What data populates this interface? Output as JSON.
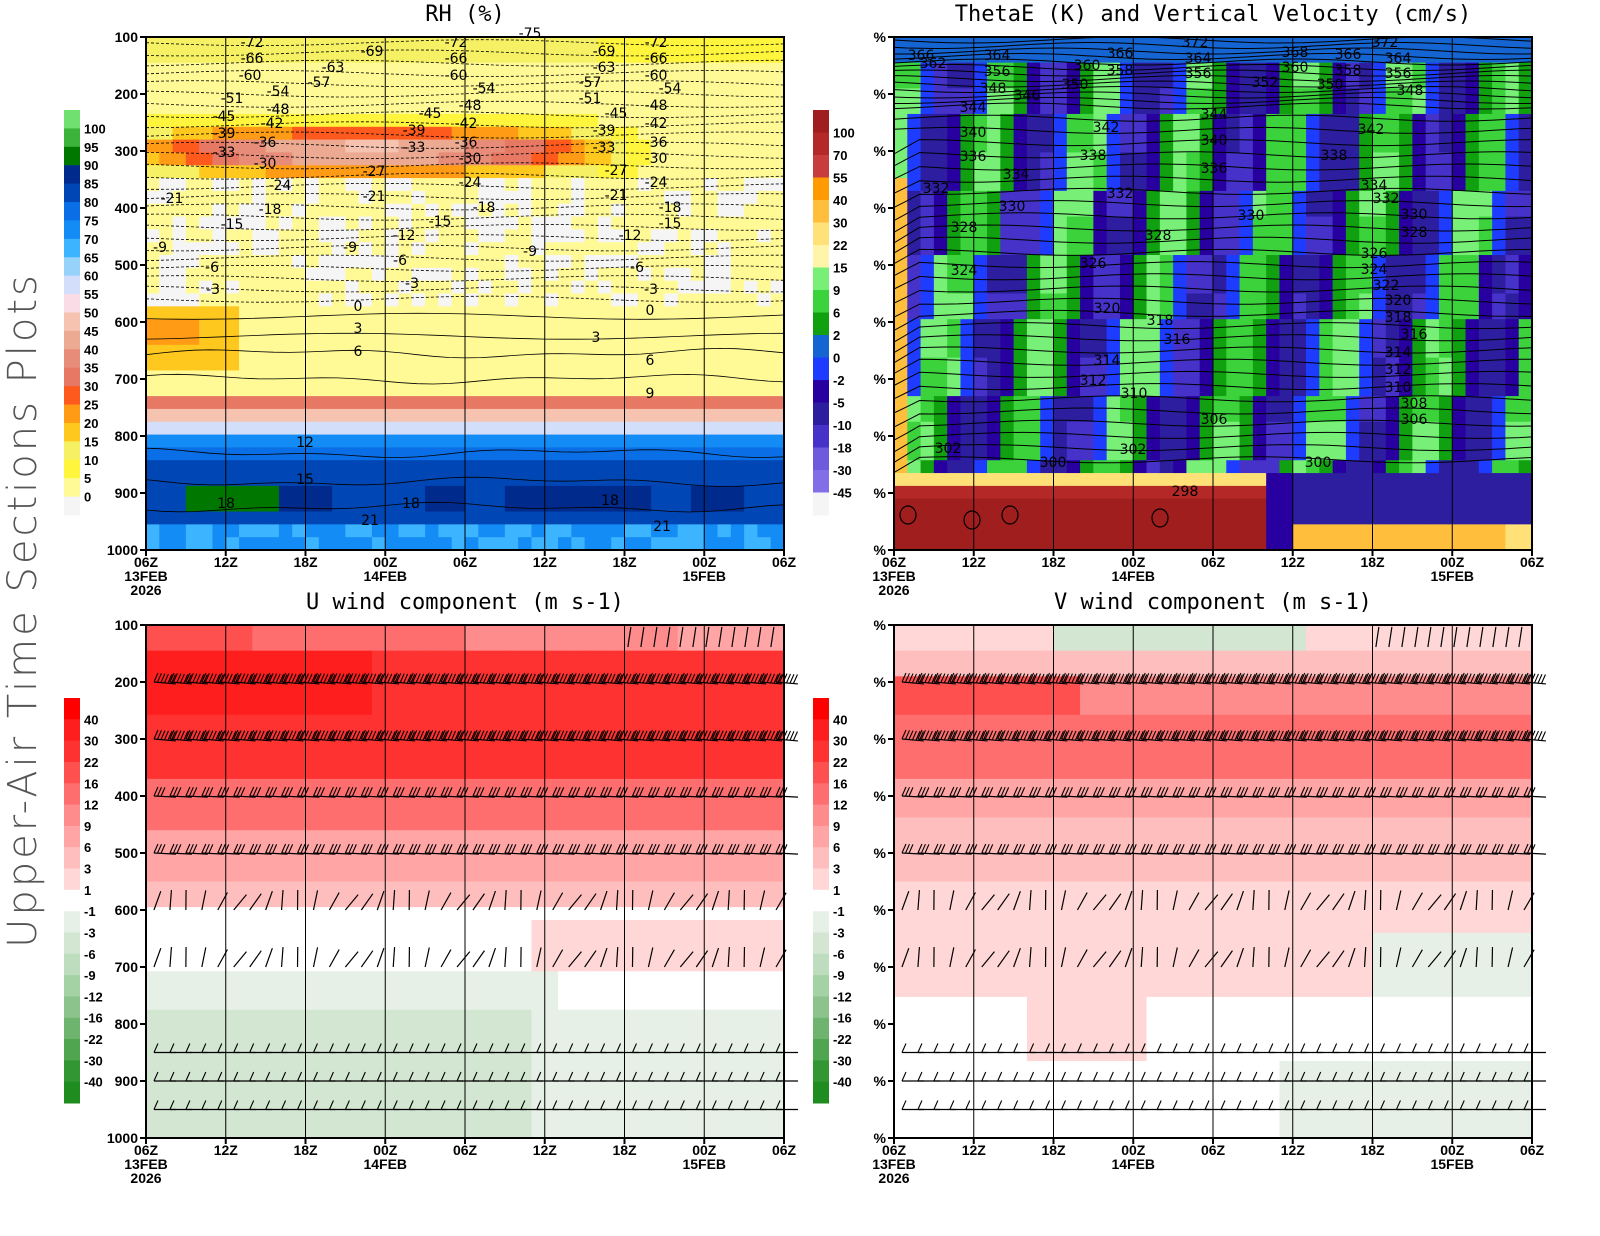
{
  "figure": {
    "side_title": "Upper-Air Time Sections Plots"
  },
  "chart_data": [
    {
      "id": "rh",
      "type": "heatmap",
      "title": "RH (%)",
      "xlabel": "",
      "ylabel": "",
      "y_ticks": [
        "100",
        "200",
        "300",
        "400",
        "500",
        "600",
        "700",
        "800",
        "900",
        "1000"
      ],
      "y_range": [
        1000,
        100
      ],
      "x_ticks": [
        {
          "l1": "06Z",
          "l2": "13FEB",
          "l3": "2026"
        },
        {
          "l1": "12Z"
        },
        {
          "l1": "18Z"
        },
        {
          "l1": "00Z",
          "l2": "14FEB"
        },
        {
          "l1": "06Z"
        },
        {
          "l1": "12Z"
        },
        {
          "l1": "18Z"
        },
        {
          "l1": "00Z",
          "l2": "15FEB"
        },
        {
          "l1": "06Z"
        }
      ],
      "colorbar": {
        "labels": [
          "100",
          "95",
          "90",
          "85",
          "80",
          "75",
          "70",
          "65",
          "60",
          "55",
          "50",
          "45",
          "40",
          "35",
          "30",
          "25",
          "20",
          "15",
          "10",
          "5",
          "0"
        ],
        "colors": [
          "#70e070",
          "#3cb43c",
          "#007800",
          "#002a8c",
          "#0046b4",
          "#0a6ee6",
          "#148cf5",
          "#3cb4ff",
          "#96d2fa",
          "#d2defa",
          "#fadce6",
          "#f5c3af",
          "#ebaa91",
          "#e68c78",
          "#e67864",
          "#ff5a1e",
          "#ff9b14",
          "#ffc81e",
          "#f5f064",
          "#fff53c",
          "#fffa96",
          "#f5f5f5"
        ]
      },
      "overlay": "temperature contours (C)",
      "contour_labels": [
        "-72",
        "-66",
        "-60",
        "-51",
        "-45",
        "-39",
        "-33",
        "-54",
        "-48",
        "-42",
        "-36",
        "-30",
        "-24",
        "-18",
        "-15",
        "-21",
        "-63",
        "-57",
        "-69",
        "-27",
        "-12",
        "-9",
        "-6",
        "-3",
        "0",
        "3",
        "6",
        "9",
        "12",
        "15",
        "18",
        "21",
        "-75"
      ]
    },
    {
      "id": "thetae",
      "type": "heatmap",
      "title": "ThetaE (K) and Vertical Velocity (cm/s)",
      "y_ticks": [
        "%",
        "%",
        "%",
        "%",
        "%",
        "%",
        "%",
        "%",
        "%",
        "%"
      ],
      "x_ticks": [
        {
          "l1": "06Z",
          "l2": "13FEB",
          "l3": "2026"
        },
        {
          "l1": "12Z"
        },
        {
          "l1": "18Z"
        },
        {
          "l1": "00Z",
          "l2": "14FEB"
        },
        {
          "l1": "06Z"
        },
        {
          "l1": "12Z"
        },
        {
          "l1": "18Z"
        },
        {
          "l1": "00Z",
          "l2": "15FEB"
        },
        {
          "l1": "06Z"
        }
      ],
      "colorbar": {
        "labels": [
          "100",
          "70",
          "55",
          "40",
          "30",
          "22",
          "15",
          "9",
          "6",
          "2",
          "0",
          "-2",
          "-5",
          "-10",
          "-18",
          "-30",
          "-45"
        ],
        "colors": [
          "#a01e1e",
          "#b42828",
          "#c83c3c",
          "#ff9b00",
          "#ffbe3c",
          "#ffe178",
          "#fff5aa",
          "#78f078",
          "#3cd23c",
          "#10a010",
          "#1464d2",
          "#1e3cff",
          "#2800a0",
          "#2d1ea0",
          "#4632c8",
          "#6e5adc",
          "#826ee6",
          "#f5f5f5"
        ]
      },
      "overlay": "theta-e contours (K)",
      "contour_labels": [
        "366",
        "362",
        "364",
        "356",
        "348",
        "346",
        "350",
        "360",
        "358",
        "366",
        "372",
        "364",
        "356",
        "352",
        "368",
        "360",
        "350",
        "348",
        "344",
        "340",
        "336",
        "334",
        "332",
        "330",
        "328",
        "324",
        "342",
        "338",
        "326",
        "320",
        "318",
        "316",
        "314",
        "312",
        "310",
        "302",
        "300",
        "298",
        "306",
        "308",
        "322"
      ]
    },
    {
      "id": "uwind",
      "type": "heatmap",
      "title": "U wind component (m s-1)",
      "y_ticks": [
        "100",
        "200",
        "300",
        "400",
        "500",
        "600",
        "700",
        "800",
        "900",
        "1000"
      ],
      "x_ticks": [
        {
          "l1": "06Z",
          "l2": "13FEB",
          "l3": "2026"
        },
        {
          "l1": "12Z"
        },
        {
          "l1": "18Z"
        },
        {
          "l1": "00Z",
          "l2": "14FEB"
        },
        {
          "l1": "06Z"
        },
        {
          "l1": "12Z"
        },
        {
          "l1": "18Z"
        },
        {
          "l1": "00Z",
          "l2": "15FEB"
        },
        {
          "l1": "06Z"
        }
      ],
      "colorbar": {
        "labels": [
          "40",
          "30",
          "22",
          "16",
          "12",
          "9",
          "6",
          "3",
          "1",
          "-1",
          "-3",
          "-6",
          "-9",
          "-12",
          "-16",
          "-22",
          "-30",
          "-40"
        ],
        "colors": [
          "#ff0000",
          "#ff1e1e",
          "#ff3232",
          "#ff5050",
          "#ff6e6e",
          "#ff8c8c",
          "#ffa5a5",
          "#ffbebe",
          "#ffd7d7",
          "#ffffff",
          "#e6f0e6",
          "#d2e6d2",
          "#bedcbe",
          "#a5d2a5",
          "#8cc38c",
          "#6eb46e",
          "#50a550",
          "#329632",
          "#1e8c1e"
        ]
      },
      "overlay": "wind barbs"
    },
    {
      "id": "vwind",
      "type": "heatmap",
      "title": "V wind component (m s-1)",
      "y_ticks": [
        "%",
        "%",
        "%",
        "%",
        "%",
        "%",
        "%",
        "%",
        "%",
        "%"
      ],
      "x_ticks": [
        {
          "l1": "06Z",
          "l2": "13FEB",
          "l3": "2026"
        },
        {
          "l1": "12Z"
        },
        {
          "l1": "18Z"
        },
        {
          "l1": "00Z",
          "l2": "14FEB"
        },
        {
          "l1": "06Z"
        },
        {
          "l1": "12Z"
        },
        {
          "l1": "18Z"
        },
        {
          "l1": "00Z",
          "l2": "15FEB"
        },
        {
          "l1": "06Z"
        }
      ],
      "colorbar": {
        "labels": [
          "40",
          "30",
          "22",
          "16",
          "12",
          "9",
          "6",
          "3",
          "1",
          "-1",
          "-3",
          "-6",
          "-9",
          "-12",
          "-16",
          "-22",
          "-30",
          "-40"
        ],
        "colors": [
          "#ff0000",
          "#ff1e1e",
          "#ff3232",
          "#ff5050",
          "#ff6e6e",
          "#ff8c8c",
          "#ffa5a5",
          "#ffbebe",
          "#ffd7d7",
          "#ffffff",
          "#e6f0e6",
          "#d2e6d2",
          "#bedcbe",
          "#a5d2a5",
          "#8cc38c",
          "#6eb46e",
          "#50a550",
          "#329632",
          "#1e8c1e"
        ]
      },
      "overlay": "wind barbs"
    }
  ]
}
